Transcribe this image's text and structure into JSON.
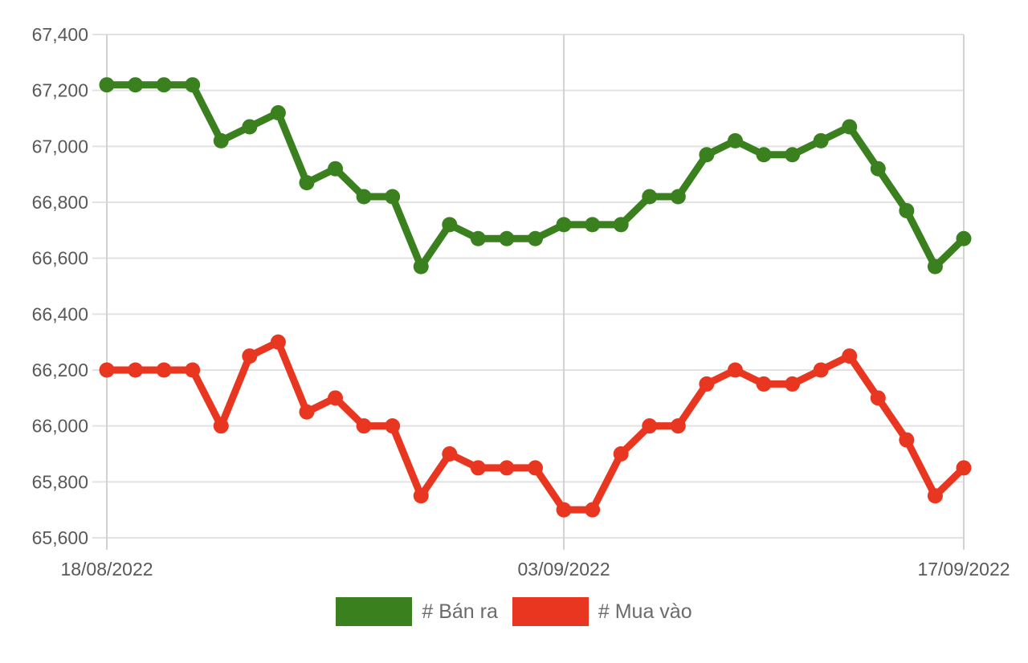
{
  "chart_data": {
    "type": "line",
    "title": "",
    "categories": [
      "18/08/2022",
      "19/08/2022",
      "20/08/2022",
      "21/08/2022",
      "22/08/2022",
      "23/08/2022",
      "24/08/2022",
      "25/08/2022",
      "26/08/2022",
      "27/08/2022",
      "28/08/2022",
      "29/08/2022",
      "30/08/2022",
      "31/08/2022",
      "01/09/2022",
      "02/09/2022",
      "03/09/2022",
      "04/09/2022",
      "05/09/2022",
      "06/09/2022",
      "07/09/2022",
      "08/09/2022",
      "09/09/2022",
      "10/09/2022",
      "11/09/2022",
      "12/09/2022",
      "13/09/2022",
      "14/09/2022",
      "15/09/2022",
      "16/09/2022",
      "17/09/2022"
    ],
    "series": [
      {
        "name": "# Bán ra",
        "color": "#3A801F",
        "values": [
          67220,
          67220,
          67220,
          67220,
          67020,
          67070,
          67120,
          66870,
          66920,
          66820,
          66820,
          66570,
          66720,
          66670,
          66670,
          66670,
          66720,
          66720,
          66720,
          66820,
          66820,
          66970,
          67020,
          66970,
          66970,
          67020,
          67070,
          66920,
          66770,
          66570,
          66670
        ]
      },
      {
        "name": "# Mua vào",
        "color": "#E93620",
        "values": [
          66200,
          66200,
          66200,
          66200,
          66000,
          66250,
          66300,
          66050,
          66100,
          66000,
          66000,
          65750,
          65900,
          65850,
          65850,
          65850,
          65700,
          65700,
          65900,
          66000,
          66000,
          66150,
          66200,
          66150,
          66150,
          66200,
          66250,
          66100,
          65950,
          65750,
          65850
        ]
      }
    ],
    "ylim": [
      65600,
      67400
    ],
    "y_tick_step": 200,
    "y_tick_labels": [
      "67,400",
      "67,200",
      "67,000",
      "66,800",
      "66,600",
      "66,400",
      "66,200",
      "66,000",
      "65,800",
      "65,600"
    ],
    "x_ticks": [
      {
        "index": 0,
        "label": "18/08/2022"
      },
      {
        "index": 16,
        "label": "03/09/2022"
      },
      {
        "index": 30,
        "label": "17/09/2022"
      }
    ],
    "grid": true,
    "legend_position": "bottom"
  },
  "styles": {
    "background": "#ffffff",
    "grid_color": "#e2e2e2",
    "axis_line_color": "#d2d2d2",
    "axis_label_color": "#595959",
    "legend_text_color": "#6b6b6b"
  }
}
